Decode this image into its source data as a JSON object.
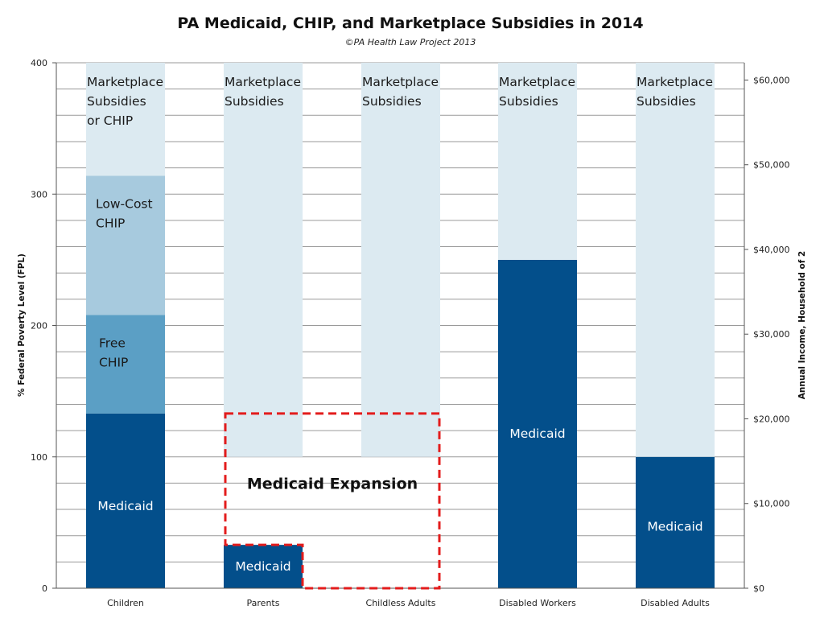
{
  "colors": {
    "medicaid": "#034f8b",
    "free_chip": "#5b9fc5",
    "lowcost_chip": "#a7cade",
    "marketplace": "#dceaf1",
    "grid": "#9a9a9a",
    "expansion_border": "#e31c1c"
  },
  "chart_data": {
    "type": "bar",
    "stacked": true,
    "title": "PA Medicaid, CHIP, and Marketplace Subsidies in 2014",
    "subtitle": "©PA Health Law Project 2013",
    "ylabel": "% Federal Poverty Level (FPL)",
    "y2label": "Annual Income, Household of 2",
    "ylim": [
      0,
      400
    ],
    "y_ticks": [
      0,
      100,
      200,
      300,
      400
    ],
    "y2lim": [
      0,
      62040
    ],
    "y2_ticks": [
      {
        "value": 0,
        "label": "$0"
      },
      {
        "value": 10000,
        "label": "$10,000"
      },
      {
        "value": 20000,
        "label": "$20,000"
      },
      {
        "value": 30000,
        "label": "$30,000"
      },
      {
        "value": 40000,
        "label": "$40,000"
      },
      {
        "value": 50000,
        "label": "$50,000"
      },
      {
        "value": 60000,
        "label": "$60,000"
      }
    ],
    "grid": true,
    "grid_step": 20,
    "categories": [
      "Children",
      "Parents",
      "Childless Adults",
      "Disabled Workers",
      "Disabled Adults"
    ],
    "bars": [
      {
        "category": "Children",
        "segments": [
          {
            "from": 0,
            "to": 133,
            "kind": "medicaid",
            "label": [
              "Medicaid"
            ]
          },
          {
            "from": 133,
            "to": 208,
            "kind": "free_chip",
            "label": [
              "Free",
              "CHIP"
            ]
          },
          {
            "from": 208,
            "to": 314,
            "kind": "lowcost_chip",
            "label": [
              "Low-Cost",
              "CHIP"
            ]
          },
          {
            "from": 314,
            "to": 400,
            "kind": "marketplace",
            "label": [
              "Marketplace",
              "Subsidies",
              "or CHIP"
            ]
          }
        ]
      },
      {
        "category": "Parents",
        "segments": [
          {
            "from": 0,
            "to": 33,
            "kind": "medicaid",
            "label": [
              "Medicaid"
            ]
          },
          {
            "from": 100,
            "to": 400,
            "kind": "marketplace",
            "label": [
              "Marketplace",
              "Subsidies"
            ]
          }
        ]
      },
      {
        "category": "Childless Adults",
        "segments": [
          {
            "from": 100,
            "to": 400,
            "kind": "marketplace",
            "label": [
              "Marketplace",
              "Subsidies"
            ]
          }
        ]
      },
      {
        "category": "Disabled Workers",
        "segments": [
          {
            "from": 0,
            "to": 250,
            "kind": "medicaid",
            "label": [
              "Medicaid"
            ]
          },
          {
            "from": 250,
            "to": 400,
            "kind": "marketplace",
            "label": [
              "Marketplace",
              "Subsidies"
            ]
          }
        ]
      },
      {
        "category": "Disabled Adults",
        "segments": [
          {
            "from": 0,
            "to": 100,
            "kind": "medicaid",
            "label": [
              "Medicaid"
            ]
          },
          {
            "from": 100,
            "to": 400,
            "kind": "marketplace",
            "label": [
              "Marketplace",
              "Subsidies"
            ]
          }
        ]
      }
    ],
    "annotations": [
      {
        "text": "Medicaid Expansion",
        "from_category": "Parents",
        "to_category": "Childless Adults",
        "y_range": [
          0,
          133
        ]
      }
    ]
  }
}
